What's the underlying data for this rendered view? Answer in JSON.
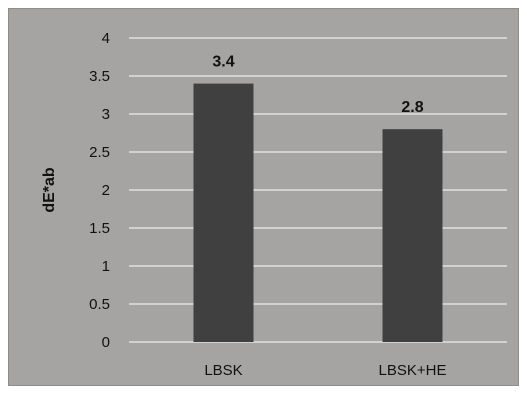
{
  "chart_data": {
    "type": "bar",
    "categories": [
      "LBSK",
      "LBSK+HE"
    ],
    "values": [
      3.4,
      2.8
    ],
    "data_labels": [
      "3.4",
      "2.8"
    ],
    "title": "",
    "xlabel": "",
    "ylabel": "dE*ab",
    "ylim": [
      0,
      4
    ],
    "yticks": [
      0,
      0.5,
      1,
      1.5,
      2,
      2.5,
      3,
      3.5,
      4
    ],
    "ytick_labels": [
      "0",
      "0.5",
      "1",
      "1.5",
      "2",
      "2.5",
      "3",
      "3.5",
      "4"
    ],
    "grid": true,
    "legend": "none",
    "colors": {
      "background": "#a6a3a3",
      "bar": "#404040",
      "grid": "#ffffff"
    }
  }
}
